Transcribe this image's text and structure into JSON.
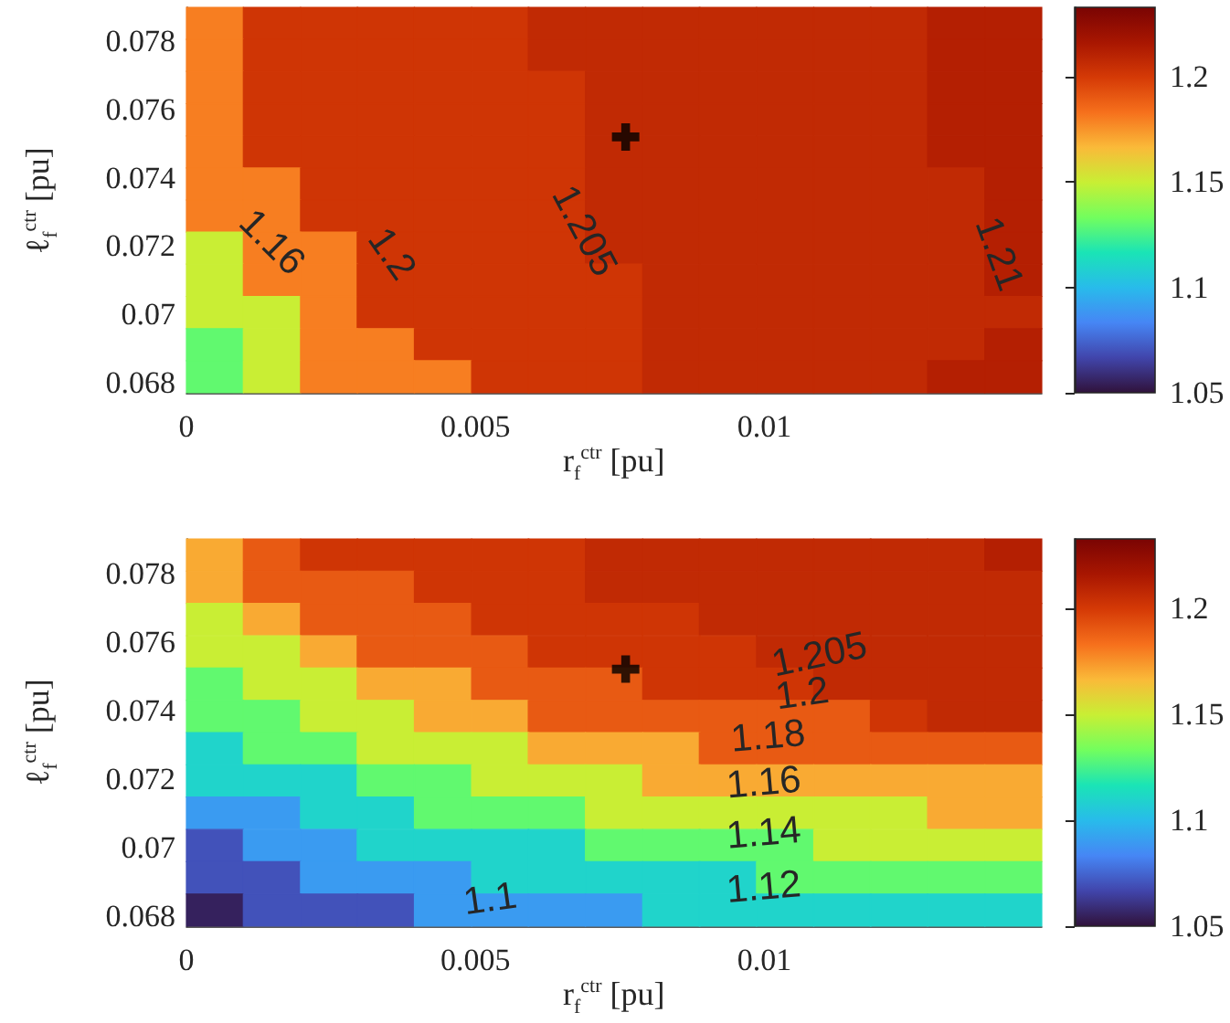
{
  "chart_data": [
    {
      "type": "heatmap",
      "xlabel": "r$_{f}$$^{ctr}$ [pu]",
      "ylabel": "ℓ$_{f}$$^{ctr}$ [pu]",
      "x": [
        0.00049,
        0.00148,
        0.00247,
        0.00345,
        0.00444,
        0.00543,
        0.00641,
        0.0074,
        0.00839,
        0.00937,
        0.01036,
        0.01135,
        0.01233,
        0.01332,
        0.01431
      ],
      "y": [
        0.07853,
        0.07759,
        0.07665,
        0.0757,
        0.07476,
        0.07382,
        0.07288,
        0.07194,
        0.071,
        0.07005,
        0.06911,
        0.06817
      ],
      "cells": [
        [
          1.18,
          1.202,
          1.202,
          1.202,
          1.202,
          1.202,
          1.207,
          1.207,
          1.207,
          1.207,
          1.207,
          1.207,
          1.207,
          1.212,
          1.212
        ],
        [
          1.18,
          1.202,
          1.202,
          1.202,
          1.202,
          1.202,
          1.207,
          1.207,
          1.207,
          1.207,
          1.207,
          1.207,
          1.207,
          1.212,
          1.212
        ],
        [
          1.18,
          1.202,
          1.202,
          1.202,
          1.202,
          1.202,
          1.202,
          1.207,
          1.207,
          1.207,
          1.207,
          1.207,
          1.207,
          1.212,
          1.212
        ],
        [
          1.18,
          1.202,
          1.202,
          1.202,
          1.202,
          1.202,
          1.202,
          1.207,
          1.207,
          1.207,
          1.207,
          1.207,
          1.207,
          1.212,
          1.212
        ],
        [
          1.18,
          1.202,
          1.202,
          1.202,
          1.202,
          1.202,
          1.202,
          1.207,
          1.207,
          1.207,
          1.207,
          1.207,
          1.207,
          1.212,
          1.212
        ],
        [
          1.18,
          1.18,
          1.202,
          1.202,
          1.202,
          1.202,
          1.202,
          1.207,
          1.207,
          1.207,
          1.207,
          1.207,
          1.207,
          1.207,
          1.212
        ],
        [
          1.18,
          1.18,
          1.202,
          1.202,
          1.202,
          1.202,
          1.202,
          1.207,
          1.207,
          1.207,
          1.207,
          1.207,
          1.207,
          1.207,
          1.212
        ],
        [
          1.15,
          1.18,
          1.18,
          1.202,
          1.202,
          1.202,
          1.202,
          1.207,
          1.207,
          1.207,
          1.207,
          1.207,
          1.207,
          1.207,
          1.212
        ],
        [
          1.15,
          1.18,
          1.18,
          1.202,
          1.202,
          1.202,
          1.202,
          1.202,
          1.207,
          1.207,
          1.207,
          1.207,
          1.207,
          1.207,
          1.212
        ],
        [
          1.15,
          1.15,
          1.18,
          1.202,
          1.202,
          1.202,
          1.202,
          1.202,
          1.207,
          1.207,
          1.207,
          1.207,
          1.207,
          1.207,
          1.207
        ],
        [
          1.13,
          1.15,
          1.18,
          1.18,
          1.202,
          1.202,
          1.202,
          1.202,
          1.207,
          1.207,
          1.207,
          1.207,
          1.207,
          1.207,
          1.212
        ],
        [
          1.13,
          1.15,
          1.18,
          1.18,
          1.18,
          1.202,
          1.202,
          1.202,
          1.207,
          1.207,
          1.207,
          1.207,
          1.207,
          1.212,
          1.212
        ]
      ],
      "xlim": [
        0,
        0.0148
      ],
      "ylim": [
        0.0677,
        0.079
      ],
      "xticks": [
        0,
        0.005,
        0.01
      ],
      "yticks": [
        0.068,
        0.07,
        0.072,
        0.074,
        0.076,
        0.078
      ],
      "clim": [
        1.05,
        1.233
      ],
      "cticks": [
        1.05,
        1.1,
        1.15,
        1.2
      ],
      "marker": "cross",
      "series": [
        {
          "type": "scatter",
          "x": [
            0.0076
          ],
          "values": [
            0.0752
          ],
          "color": "#000000"
        }
      ],
      "annotations": [
        "1.16",
        "1.2",
        "1.205",
        "1.21"
      ]
    },
    {
      "type": "heatmap",
      "xlabel": "r$_{f}$$^{ctr}$ [pu]",
      "ylabel": "ℓ$_{f}$$^{ctr}$ [pu]",
      "x": [
        0.00049,
        0.00148,
        0.00247,
        0.00345,
        0.00444,
        0.00543,
        0.00641,
        0.0074,
        0.00839,
        0.00937,
        0.01036,
        0.01135,
        0.01233,
        0.01332,
        0.01431
      ],
      "y": [
        0.07853,
        0.07759,
        0.07665,
        0.0757,
        0.07476,
        0.07382,
        0.07288,
        0.07194,
        0.071,
        0.07005,
        0.06911,
        0.06817
      ],
      "cells": [
        [
          1.17,
          1.19,
          1.202,
          1.202,
          1.202,
          1.202,
          1.202,
          1.207,
          1.207,
          1.207,
          1.207,
          1.207,
          1.207,
          1.207,
          1.212
        ],
        [
          1.17,
          1.19,
          1.19,
          1.19,
          1.202,
          1.202,
          1.202,
          1.207,
          1.207,
          1.207,
          1.207,
          1.207,
          1.207,
          1.207,
          1.207
        ],
        [
          1.15,
          1.17,
          1.19,
          1.19,
          1.19,
          1.202,
          1.202,
          1.202,
          1.202,
          1.207,
          1.207,
          1.207,
          1.207,
          1.207,
          1.207
        ],
        [
          1.15,
          1.15,
          1.17,
          1.19,
          1.19,
          1.19,
          1.202,
          1.202,
          1.202,
          1.202,
          1.207,
          1.207,
          1.207,
          1.207,
          1.207
        ],
        [
          1.13,
          1.15,
          1.15,
          1.17,
          1.17,
          1.19,
          1.19,
          1.19,
          1.202,
          1.202,
          1.202,
          1.207,
          1.207,
          1.207,
          1.207
        ],
        [
          1.13,
          1.13,
          1.15,
          1.15,
          1.17,
          1.17,
          1.19,
          1.19,
          1.19,
          1.19,
          1.19,
          1.19,
          1.202,
          1.207,
          1.207
        ],
        [
          1.11,
          1.13,
          1.13,
          1.15,
          1.15,
          1.15,
          1.17,
          1.17,
          1.17,
          1.19,
          1.19,
          1.19,
          1.19,
          1.19,
          1.19
        ],
        [
          1.11,
          1.11,
          1.11,
          1.13,
          1.13,
          1.15,
          1.15,
          1.15,
          1.17,
          1.17,
          1.17,
          1.17,
          1.17,
          1.17,
          1.17
        ],
        [
          1.09,
          1.09,
          1.11,
          1.11,
          1.13,
          1.13,
          1.13,
          1.15,
          1.15,
          1.15,
          1.15,
          1.15,
          1.15,
          1.17,
          1.17
        ],
        [
          1.07,
          1.09,
          1.09,
          1.11,
          1.11,
          1.11,
          1.11,
          1.13,
          1.13,
          1.13,
          1.13,
          1.15,
          1.15,
          1.15,
          1.15
        ],
        [
          1.07,
          1.07,
          1.09,
          1.09,
          1.09,
          1.11,
          1.11,
          1.11,
          1.11,
          1.11,
          1.13,
          1.13,
          1.13,
          1.13,
          1.13
        ],
        [
          1.055,
          1.07,
          1.07,
          1.07,
          1.09,
          1.09,
          1.09,
          1.09,
          1.11,
          1.11,
          1.11,
          1.11,
          1.11,
          1.11,
          1.11
        ]
      ],
      "xlim": [
        0,
        0.0148
      ],
      "ylim": [
        0.0677,
        0.079
      ],
      "xticks": [
        0,
        0.005,
        0.01
      ],
      "yticks": [
        0.068,
        0.07,
        0.072,
        0.074,
        0.076,
        0.078
      ],
      "clim": [
        1.05,
        1.233
      ],
      "cticks": [
        1.05,
        1.1,
        1.15,
        1.2
      ],
      "marker": "cross",
      "series": [
        {
          "type": "scatter",
          "x": [
            0.0076
          ],
          "values": [
            0.0752
          ],
          "color": "#000000"
        }
      ],
      "annotations": [
        "1.1",
        "1.12",
        "1.14",
        "1.16",
        "1.18",
        "1.2",
        "1.205"
      ]
    }
  ]
}
